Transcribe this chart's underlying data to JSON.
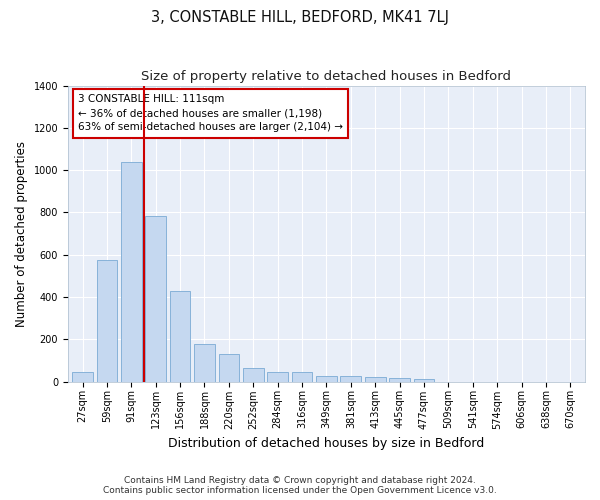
{
  "title": "3, CONSTABLE HILL, BEDFORD, MK41 7LJ",
  "subtitle": "Size of property relative to detached houses in Bedford",
  "xlabel": "Distribution of detached houses by size in Bedford",
  "ylabel": "Number of detached properties",
  "categories": [
    "27sqm",
    "59sqm",
    "91sqm",
    "123sqm",
    "156sqm",
    "188sqm",
    "220sqm",
    "252sqm",
    "284sqm",
    "316sqm",
    "349sqm",
    "381sqm",
    "413sqm",
    "445sqm",
    "477sqm",
    "509sqm",
    "541sqm",
    "574sqm",
    "606sqm",
    "638sqm",
    "670sqm"
  ],
  "values": [
    45,
    575,
    1040,
    785,
    430,
    178,
    128,
    65,
    47,
    45,
    28,
    27,
    20,
    15,
    10,
    0,
    0,
    0,
    0,
    0,
    0
  ],
  "bar_color": "#c5d8f0",
  "bar_edge_color": "#7aaad4",
  "vline_color": "#cc0000",
  "annotation_text": "3 CONSTABLE HILL: 111sqm\n← 36% of detached houses are smaller (1,198)\n63% of semi-detached houses are larger (2,104) →",
  "annotation_box_color": "#cc0000",
  "ylim": [
    0,
    1400
  ],
  "yticks": [
    0,
    200,
    400,
    600,
    800,
    1000,
    1200,
    1400
  ],
  "bg_color": "#ffffff",
  "plot_bg_color": "#e8eef8",
  "footer_text": "Contains HM Land Registry data © Crown copyright and database right 2024.\nContains public sector information licensed under the Open Government Licence v3.0.",
  "title_fontsize": 10.5,
  "subtitle_fontsize": 9.5,
  "xlabel_fontsize": 9,
  "ylabel_fontsize": 8.5,
  "tick_fontsize": 7,
  "footer_fontsize": 6.5,
  "annotation_fontsize": 7.5
}
